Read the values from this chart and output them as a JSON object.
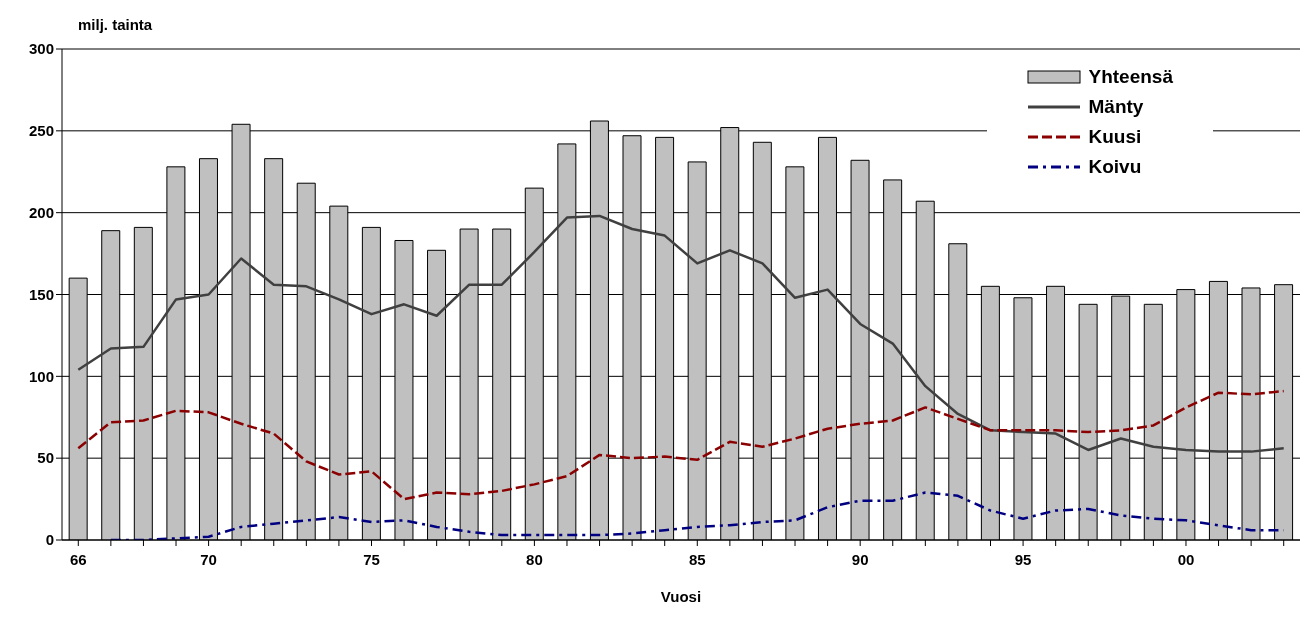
{
  "chart_data": {
    "type": "bar",
    "ylabel": "milj. tainta",
    "xlabel": "Vuosi",
    "categories": [
      "66",
      null,
      null,
      null,
      "70",
      null,
      null,
      null,
      null,
      "75",
      null,
      null,
      null,
      null,
      "80",
      null,
      null,
      null,
      null,
      "85",
      null,
      null,
      null,
      null,
      "90",
      null,
      null,
      null,
      null,
      "95",
      null,
      null,
      null,
      null,
      "00",
      null,
      null,
      null
    ],
    "series": [
      {
        "name": "Yhteensä",
        "type": "bar",
        "color": "#c0c0c0",
        "values": [
          160,
          189,
          191,
          228,
          233,
          254,
          233,
          218,
          204,
          191,
          183,
          177,
          190,
          190,
          215,
          242,
          256,
          247,
          246,
          231,
          252,
          243,
          228,
          246,
          232,
          220,
          207,
          181,
          155,
          148,
          155,
          144,
          149,
          144,
          153,
          158,
          154,
          156
        ]
      },
      {
        "name": "Mänty",
        "type": "line",
        "color": "#404040",
        "line_style": "solid",
        "values": [
          104,
          117,
          118,
          147,
          150,
          172,
          156,
          155,
          147,
          138,
          144,
          137,
          156,
          156,
          176,
          197,
          198,
          190,
          186,
          169,
          177,
          169,
          148,
          153,
          132,
          120,
          94,
          77,
          67,
          66,
          65,
          55,
          62,
          57,
          55,
          54,
          54,
          56
        ]
      },
      {
        "name": "Kuusi",
        "type": "line",
        "color": "#8b0000",
        "line_style": "dashed",
        "values": [
          56,
          72,
          73,
          79,
          78,
          71,
          65,
          48,
          40,
          42,
          25,
          29,
          28,
          30,
          34,
          39,
          52,
          50,
          51,
          49,
          60,
          57,
          62,
          68,
          71,
          73,
          81,
          74,
          67,
          67,
          67,
          66,
          67,
          70,
          81,
          90,
          89,
          91
        ]
      },
      {
        "name": "Koivu",
        "type": "line",
        "color": "#000080",
        "line_style": "dotted",
        "values": [
          null,
          0,
          0,
          1,
          2,
          8,
          10,
          12,
          14,
          11,
          12,
          8,
          5,
          3,
          3,
          3,
          3,
          4,
          6,
          8,
          9,
          11,
          12,
          20,
          24,
          24,
          29,
          27,
          18,
          13,
          18,
          19,
          15,
          13,
          12,
          9,
          6,
          6
        ]
      }
    ],
    "ylim": [
      0,
      300
    ],
    "yticks": [
      0,
      50,
      100,
      150,
      200,
      250,
      300
    ],
    "grid": "y",
    "legend": "top right",
    "marker": "none"
  }
}
